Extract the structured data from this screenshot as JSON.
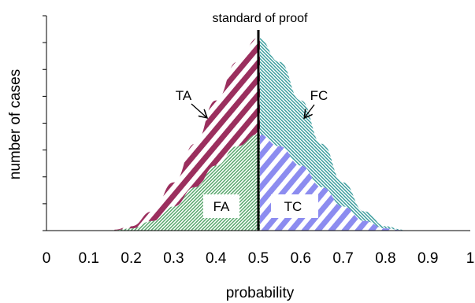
{
  "chart_data": {
    "type": "area",
    "title": "standard of proof",
    "xlabel": "probability",
    "ylabel": "number of cases",
    "xlim": [
      0,
      1
    ],
    "x_ticks": [
      0,
      0.1,
      0.2,
      0.3,
      0.4,
      0.5,
      0.6,
      0.7,
      0.8,
      0.9,
      1
    ],
    "x_tick_labels": [
      "0",
      "0.1",
      "0.2",
      "0.3",
      "0.4",
      "0.5",
      "0.6",
      "0.7",
      "0.8",
      "0.9",
      "1"
    ],
    "y_tick_count": 8,
    "threshold": 0.5,
    "x": [
      0.16,
      0.2,
      0.25,
      0.3,
      0.35,
      0.4,
      0.45,
      0.5,
      0.55,
      0.6,
      0.65,
      0.7,
      0.75,
      0.8,
      0.84
    ],
    "series": [
      {
        "name": "TA",
        "color": "#9b2f5e",
        "values": [
          0.004,
          0.018,
          0.08,
          0.2,
          0.36,
          0.54,
          0.7,
          0.8,
          null,
          null,
          null,
          null,
          null,
          null,
          null
        ]
      },
      {
        "name": "FC",
        "color": "#3f9f9f",
        "values": [
          null,
          null,
          null,
          null,
          null,
          null,
          null,
          0.8,
          0.7,
          0.54,
          0.36,
          0.2,
          0.08,
          0.018,
          0.004
        ]
      },
      {
        "name": "FA",
        "color": "#5aa86e",
        "values": [
          0.002,
          0.009,
          0.04,
          0.1,
          0.18,
          0.27,
          0.35,
          0.4,
          null,
          null,
          null,
          null,
          null,
          null,
          null
        ]
      },
      {
        "name": "TC",
        "color": "#8c8cf0",
        "values": [
          null,
          null,
          null,
          null,
          null,
          null,
          null,
          0.4,
          0.35,
          0.27,
          0.18,
          0.1,
          0.04,
          0.009,
          0.002
        ]
      }
    ],
    "annotations": [
      {
        "text": "standard of proof",
        "x": 0.5
      },
      {
        "text": "TA",
        "x": 0.38
      },
      {
        "text": "FC",
        "x": 0.6
      },
      {
        "text": "FA",
        "x": 0.39
      },
      {
        "text": "TC",
        "x": 0.6
      }
    ]
  }
}
